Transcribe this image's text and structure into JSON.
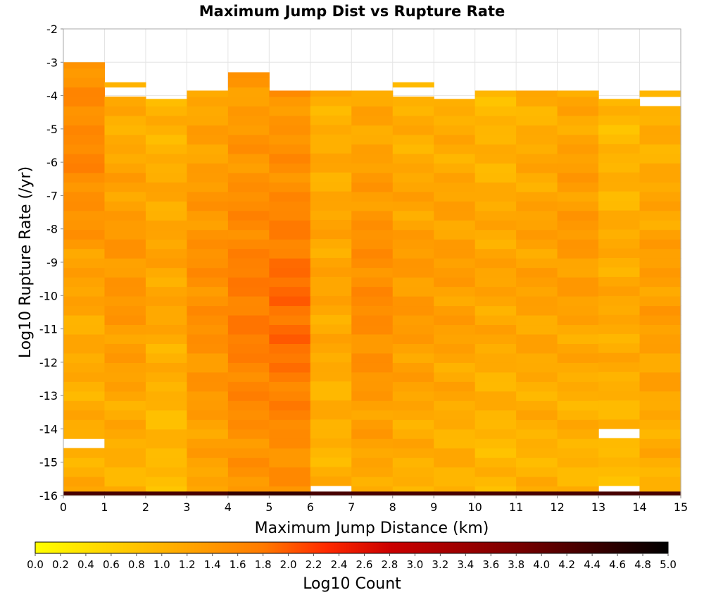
{
  "chart_data": {
    "type": "heatmap",
    "title": "Maximum Jump Dist vs Rupture Rate",
    "xlabel": "Maximum Jump Distance (km)",
    "ylabel": "Log10 Rupture Rate (/yr)",
    "xlim": [
      0,
      15
    ],
    "ylim": [
      -16,
      -2
    ],
    "x_ticks": [
      "0",
      "1",
      "2",
      "3",
      "4",
      "5",
      "6",
      "7",
      "8",
      "9",
      "10",
      "11",
      "12",
      "13",
      "14",
      "15"
    ],
    "y_ticks": [
      "-2",
      "-3",
      "-4",
      "-5",
      "-6",
      "-7",
      "-8",
      "-9",
      "-10",
      "-11",
      "-12",
      "-13",
      "-14",
      "-15",
      "-16"
    ],
    "x_bin_width": 1,
    "y_bin_height": 0.285,
    "grid": true,
    "colorbar": {
      "label": "Log10 Count",
      "min": 0.0,
      "max": 5.0,
      "ticks": [
        "0.0",
        "0.2",
        "0.4",
        "0.6",
        "0.8",
        "1.0",
        "1.2",
        "1.4",
        "1.6",
        "1.8",
        "2.0",
        "2.2",
        "2.4",
        "2.6",
        "2.8",
        "3.0",
        "3.2",
        "3.4",
        "3.6",
        "3.8",
        "4.0",
        "4.2",
        "4.4",
        "4.6",
        "4.8",
        "5.0"
      ],
      "colormap": "heat (yellow to red to black)"
    },
    "columns": [
      {
        "x": 0.5,
        "y_min": -16.0,
        "y_max": -3.0,
        "base_value": 1.1,
        "peak_y": -5.5,
        "peak_value": 1.6,
        "spread": 3.5
      },
      {
        "x": 1.5,
        "y_min": -16.0,
        "y_max": -3.6,
        "base_value": 1.0,
        "peak_y": -9.5,
        "peak_value": 1.4,
        "spread": 4.0
      },
      {
        "x": 2.5,
        "y_min": -16.0,
        "y_max": -4.1,
        "base_value": 0.9,
        "peak_y": -9.0,
        "peak_value": 1.2,
        "spread": 4.0
      },
      {
        "x": 3.5,
        "y_min": -16.0,
        "y_max": -3.85,
        "base_value": 1.1,
        "peak_y": -10.0,
        "peak_value": 1.5,
        "spread": 4.5
      },
      {
        "x": 4.5,
        "y_min": -16.0,
        "y_max": -3.3,
        "base_value": 1.3,
        "peak_y": -10.5,
        "peak_value": 1.75,
        "spread": 4.0
      },
      {
        "x": 5.5,
        "y_min": -16.0,
        "y_max": -3.85,
        "base_value": 1.4,
        "peak_y": -10.5,
        "peak_value": 1.9,
        "spread": 3.5
      },
      {
        "x": 6.5,
        "y_min": -15.7,
        "y_max": -3.85,
        "base_value": 1.0,
        "peak_y": -9.0,
        "peak_value": 1.2,
        "spread": 4.0
      },
      {
        "x": 7.5,
        "y_min": -16.0,
        "y_max": -3.85,
        "base_value": 1.1,
        "peak_y": -10.0,
        "peak_value": 1.55,
        "spread": 4.0
      },
      {
        "x": 8.5,
        "y_min": -16.0,
        "y_max": -3.6,
        "base_value": 1.0,
        "peak_y": -10.0,
        "peak_value": 1.35,
        "spread": 4.0
      },
      {
        "x": 9.5,
        "y_min": -16.0,
        "y_max": -4.1,
        "base_value": 1.0,
        "peak_y": -9.5,
        "peak_value": 1.3,
        "spread": 4.0
      },
      {
        "x": 10.5,
        "y_min": -16.0,
        "y_max": -3.85,
        "base_value": 0.9,
        "peak_y": -9.5,
        "peak_value": 1.2,
        "spread": 4.0
      },
      {
        "x": 11.5,
        "y_min": -16.0,
        "y_max": -3.85,
        "base_value": 1.0,
        "peak_y": -9.0,
        "peak_value": 1.25,
        "spread": 4.0
      },
      {
        "x": 12.5,
        "y_min": -16.0,
        "y_max": -3.85,
        "base_value": 1.0,
        "peak_y": -8.0,
        "peak_value": 1.35,
        "spread": 4.0
      },
      {
        "x": 13.5,
        "y_min": -15.7,
        "y_max": -4.1,
        "base_value": 0.9,
        "peak_y": -10.0,
        "peak_value": 1.15,
        "spread": 4.0
      },
      {
        "x": 14.5,
        "y_min": -16.0,
        "y_max": -3.85,
        "base_value": 1.0,
        "peak_y": -10.0,
        "peak_value": 1.3,
        "spread": 4.0
      }
    ],
    "bottom_row": {
      "y": -15.9,
      "values": [
        4.3,
        4.3,
        4.3,
        4.3,
        4.5,
        4.5,
        4.3,
        4.3,
        4.3,
        4.3,
        4.3,
        4.3,
        4.3,
        4.3,
        4.3
      ]
    },
    "empty_cells": [
      [
        0.5,
        -14.5
      ],
      [
        1.5,
        -3.9
      ],
      [
        2.5,
        -4.0
      ],
      [
        6.5,
        -15.85
      ],
      [
        8.5,
        -4.0
      ],
      [
        13.5,
        -14.2
      ],
      [
        13.5,
        -15.85
      ],
      [
        14.5,
        -4.15
      ]
    ]
  }
}
